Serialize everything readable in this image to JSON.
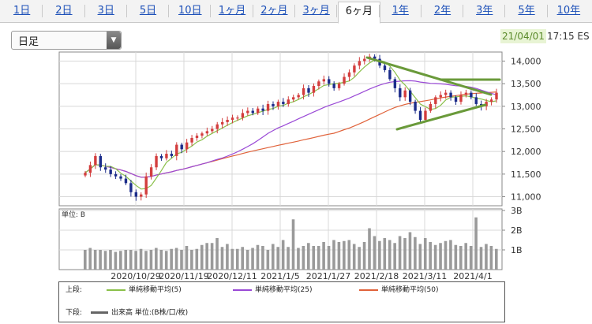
{
  "tabs": [
    "1日",
    "2日",
    "3日",
    "5日",
    "10日",
    "1ヶ月",
    "2ヶ月",
    "3ヶ月",
    "6ヶ月",
    "1年",
    "2年",
    "3年",
    "5年",
    "10年"
  ],
  "active_tab": "6ヶ月",
  "period_select": {
    "value": "日足"
  },
  "timestamp": {
    "date": "21/04/01",
    "time": "17:15 ES"
  },
  "colors": {
    "up": "#d33d3d",
    "down": "#1b2c8a",
    "ma5": "#8ac04a",
    "ma25": "#9a4ad6",
    "ma50": "#e0623a",
    "volume": "#9a9a9a",
    "trendline": "#6a9a3a"
  },
  "chart_data": [
    {
      "type": "candlestick",
      "yaxis": {
        "ticks": [
          "14,000",
          "13,500",
          "13,000",
          "12,500",
          "12,000",
          "11,500",
          "11,000"
        ],
        "ylim": [
          10800,
          14200
        ],
        "position": "right"
      },
      "xaxis": {
        "ticks": [
          "2020/10/29",
          "2020/11/19",
          "2020/12/11",
          "2021/1/5",
          "2021/1/27",
          "2021/2/18",
          "2021/3/11",
          "2021/4/1"
        ]
      },
      "close": [
        11530,
        11700,
        11900,
        11650,
        11600,
        11500,
        11450,
        11400,
        11300,
        11100,
        11000,
        11050,
        11450,
        11650,
        11900,
        11850,
        11950,
        11900,
        12150,
        12050,
        12200,
        12300,
        12350,
        12400,
        12450,
        12500,
        12600,
        12650,
        12700,
        12750,
        12750,
        12850,
        12900,
        12850,
        12950,
        12900,
        13050,
        13000,
        13100,
        13050,
        13150,
        13200,
        13250,
        13400,
        13300,
        13450,
        13550,
        13600,
        13500,
        13400,
        13500,
        13650,
        13750,
        13900,
        14000,
        14050,
        14100,
        14050,
        13900,
        13800,
        13600,
        13400,
        13200,
        13350,
        13100,
        12900,
        12700,
        12900,
        13050,
        13200,
        13250,
        13300,
        13200,
        13100,
        13250,
        13300,
        13200,
        13050,
        13000,
        13100,
        13150,
        13300
      ],
      "overlays": [
        {
          "name": "単純移動平均(5)"
        },
        {
          "name": "単純移動平均(25)"
        },
        {
          "name": "単純移動平均(50)"
        }
      ]
    },
    {
      "type": "bar",
      "title": "単位: B",
      "yaxis": {
        "ticks": [
          "3B",
          "2B",
          "1B"
        ],
        "ylim": [
          0,
          3
        ]
      },
      "values": [
        1.0,
        1.1,
        1.0,
        1.0,
        0.95,
        1.0,
        0.9,
        0.95,
        1.0,
        1.0,
        0.95,
        1.05,
        0.95,
        1.0,
        1.1,
        1.0,
        0.95,
        1.05,
        1.1,
        1.0,
        1.2,
        1.0,
        1.05,
        1.25,
        1.35,
        1.35,
        1.6,
        1.15,
        1.3,
        1.05,
        1.05,
        1.15,
        1.0,
        1.1,
        1.25,
        1.2,
        1.0,
        1.3,
        1.15,
        1.5,
        1.15,
        2.55,
        1.1,
        1.2,
        1.35,
        1.2,
        1.2,
        1.4,
        1.2,
        1.5,
        1.4,
        1.45,
        1.5,
        1.3,
        1.15,
        1.4,
        2.1,
        1.7,
        1.45,
        1.6,
        1.5,
        1.35,
        1.7,
        1.6,
        1.9,
        1.65,
        1.3,
        1.6,
        1.4,
        1.25,
        1.35,
        1.45,
        1.5,
        1.25,
        1.2,
        1.35,
        1.2,
        2.65,
        1.15,
        1.3,
        1.2,
        1.05
      ]
    }
  ],
  "legend": {
    "upper_label": "上段:",
    "lower_label": "下段:",
    "items": [
      "単純移動平均(5)",
      "単純移動平均(25)",
      "単純移動平均(50)"
    ],
    "volume_label": "出来高 単位:(B株/口/枚)"
  }
}
